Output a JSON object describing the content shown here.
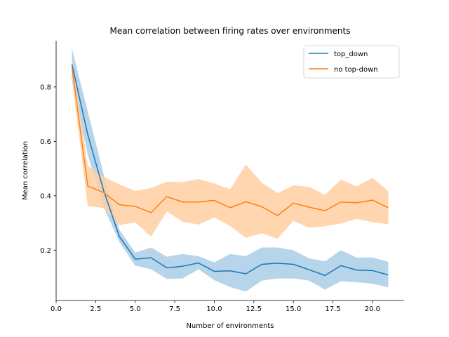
{
  "chart_data": {
    "type": "line",
    "title": "Mean correlation between firing rates over environments",
    "xlabel": "Number of environments",
    "ylabel": "Mean correlation",
    "xlim": [
      0.0,
      22.0
    ],
    "ylim": [
      0.015,
      0.97
    ],
    "xticks": [
      0.0,
      2.5,
      5.0,
      7.5,
      10.0,
      12.5,
      15.0,
      17.5,
      20.0
    ],
    "xtick_labels": [
      "0.0",
      "2.5",
      "5.0",
      "7.5",
      "10.0",
      "12.5",
      "15.0",
      "17.5",
      "20.0"
    ],
    "yticks": [
      0.2,
      0.4,
      0.6,
      0.8
    ],
    "ytick_labels": [
      "0.2",
      "0.4",
      "0.6",
      "0.8"
    ],
    "grid": false,
    "legend_position": "top-right",
    "x": [
      1,
      2,
      3,
      4,
      5,
      6,
      7,
      8,
      9,
      10,
      11,
      12,
      13,
      14,
      15,
      16,
      17,
      18,
      19,
      20,
      21
    ],
    "series": [
      {
        "name": "top_down",
        "color": "#1f77b4",
        "band_color": "#9ec6e3",
        "values": [
          0.883,
          0.625,
          0.42,
          0.25,
          0.167,
          0.172,
          0.135,
          0.141,
          0.153,
          0.122,
          0.124,
          0.113,
          0.148,
          0.152,
          0.148,
          0.128,
          0.107,
          0.143,
          0.127,
          0.125,
          0.109
        ],
        "lower": [
          0.82,
          0.55,
          0.36,
          0.23,
          0.143,
          0.13,
          0.094,
          0.096,
          0.13,
          0.09,
          0.064,
          0.048,
          0.088,
          0.096,
          0.096,
          0.088,
          0.055,
          0.086,
          0.082,
          0.077,
          0.063
        ],
        "upper": [
          0.94,
          0.71,
          0.48,
          0.275,
          0.191,
          0.21,
          0.176,
          0.186,
          0.178,
          0.155,
          0.186,
          0.178,
          0.21,
          0.21,
          0.2,
          0.17,
          0.159,
          0.2,
          0.173,
          0.173,
          0.157
        ]
      },
      {
        "name": "no top-down",
        "color": "#ff7f0e",
        "band_color": "#ffcfa2",
        "values": [
          0.873,
          0.436,
          0.412,
          0.367,
          0.361,
          0.338,
          0.397,
          0.377,
          0.377,
          0.383,
          0.356,
          0.378,
          0.36,
          0.327,
          0.373,
          0.358,
          0.345,
          0.377,
          0.374,
          0.384,
          0.356
        ],
        "lower": [
          0.83,
          0.362,
          0.355,
          0.292,
          0.302,
          0.25,
          0.342,
          0.305,
          0.294,
          0.32,
          0.289,
          0.245,
          0.262,
          0.242,
          0.308,
          0.282,
          0.288,
          0.298,
          0.315,
          0.303,
          0.295
        ],
        "upper": [
          0.905,
          0.51,
          0.47,
          0.442,
          0.418,
          0.428,
          0.452,
          0.45,
          0.462,
          0.445,
          0.424,
          0.515,
          0.448,
          0.41,
          0.438,
          0.433,
          0.403,
          0.46,
          0.434,
          0.466,
          0.417
        ]
      }
    ]
  }
}
